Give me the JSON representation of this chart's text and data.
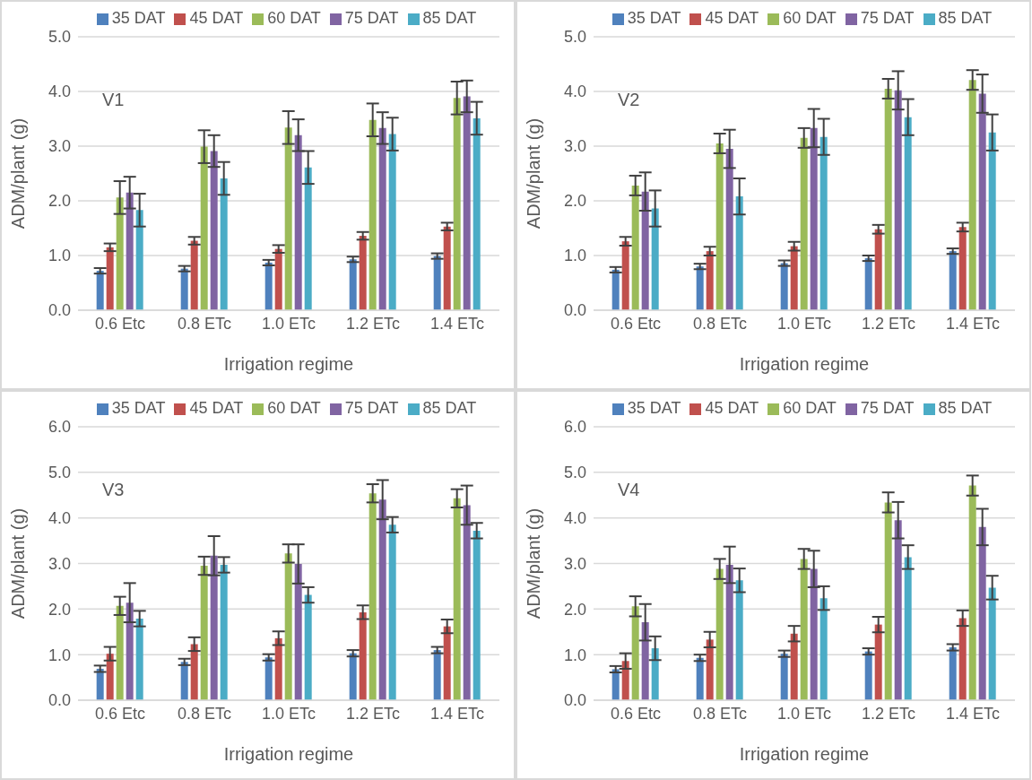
{
  "chart_data": [
    {
      "type": "bar",
      "annotations": [
        "V1"
      ],
      "xlabel": "Irrigation regime",
      "ylabel": "ADM/plant  (g)",
      "categories": [
        "0.6 Etc",
        "0.8 ETc",
        "1.0 ETc",
        "1.2 ETc",
        "1.4 ETc"
      ],
      "ylim": [
        0,
        5
      ],
      "yticks": [
        {
          "value": 0,
          "label": "0.0"
        },
        {
          "value": 1,
          "label": "1.0"
        },
        {
          "value": 2,
          "label": "2.0"
        },
        {
          "value": 3,
          "label": "3.0"
        },
        {
          "value": 4,
          "label": "4.0"
        },
        {
          "value": 5,
          "label": "5.0"
        }
      ],
      "grid": "y",
      "legend": "top",
      "series": [
        {
          "name": "35 DAT",
          "color": "#4f81bd",
          "values": [
            0.72,
            0.76,
            0.87,
            0.93,
            0.99
          ],
          "errors": [
            0.05,
            0.05,
            0.05,
            0.05,
            0.05
          ]
        },
        {
          "name": "45 DAT",
          "color": "#c0504d",
          "values": [
            1.15,
            1.27,
            1.12,
            1.36,
            1.53
          ],
          "errors": [
            0.07,
            0.07,
            0.07,
            0.07,
            0.07
          ]
        },
        {
          "name": "60 DAT",
          "color": "#9bbb59",
          "values": [
            2.06,
            2.99,
            3.34,
            3.48,
            3.88
          ],
          "errors": [
            0.3,
            0.3,
            0.3,
            0.3,
            0.3
          ]
        },
        {
          "name": "75 DAT",
          "color": "#8064a2",
          "values": [
            2.15,
            2.91,
            3.2,
            3.33,
            3.91
          ],
          "errors": [
            0.29,
            0.29,
            0.29,
            0.29,
            0.29
          ]
        },
        {
          "name": "85 DAT",
          "color": "#4bacc6",
          "values": [
            1.83,
            2.41,
            2.61,
            3.22,
            3.51
          ],
          "errors": [
            0.3,
            0.3,
            0.3,
            0.3,
            0.3
          ]
        }
      ]
    },
    {
      "type": "bar",
      "annotations": [
        "V2"
      ],
      "xlabel": "Irrigation regime",
      "ylabel": "ADM/plant  (g)",
      "categories": [
        "0.6 Etc",
        "0.8 ETc",
        "1.0 ETc",
        "1.2 ETc",
        "1.4 ETc"
      ],
      "ylim": [
        0,
        5
      ],
      "yticks": [
        {
          "value": 0,
          "label": "0.0"
        },
        {
          "value": 1,
          "label": "1.0"
        },
        {
          "value": 2,
          "label": "2.0"
        },
        {
          "value": 3,
          "label": "3.0"
        },
        {
          "value": 4,
          "label": "4.0"
        },
        {
          "value": 5,
          "label": "5.0"
        }
      ],
      "grid": "y",
      "legend": "top",
      "series": [
        {
          "name": "35 DAT",
          "color": "#4f81bd",
          "values": [
            0.74,
            0.8,
            0.86,
            0.95,
            1.08
          ],
          "errors": [
            0.05,
            0.05,
            0.05,
            0.05,
            0.05
          ]
        },
        {
          "name": "45 DAT",
          "color": "#c0504d",
          "values": [
            1.26,
            1.08,
            1.17,
            1.48,
            1.52
          ],
          "errors": [
            0.08,
            0.08,
            0.08,
            0.08,
            0.08
          ]
        },
        {
          "name": "60 DAT",
          "color": "#9bbb59",
          "values": [
            2.28,
            3.05,
            3.15,
            4.05,
            4.21
          ],
          "errors": [
            0.18,
            0.18,
            0.18,
            0.18,
            0.18
          ]
        },
        {
          "name": "75 DAT",
          "color": "#8064a2",
          "values": [
            2.17,
            2.95,
            3.33,
            4.02,
            3.96
          ],
          "errors": [
            0.35,
            0.35,
            0.35,
            0.35,
            0.35
          ]
        },
        {
          "name": "85 DAT",
          "color": "#4bacc6",
          "values": [
            1.86,
            2.08,
            3.17,
            3.53,
            3.25
          ],
          "errors": [
            0.33,
            0.33,
            0.33,
            0.33,
            0.33
          ]
        }
      ]
    },
    {
      "type": "bar",
      "annotations": [
        "V3"
      ],
      "xlabel": "Irrigation regime",
      "ylabel": "ADM/plant  (g)",
      "categories": [
        "0.6 Etc",
        "0.8 ETc",
        "1.0 ETc",
        "1.2 ETc",
        "1.4 ETc"
      ],
      "ylim": [
        0,
        6
      ],
      "yticks": [
        {
          "value": 0,
          "label": "0.0"
        },
        {
          "value": 1,
          "label": "1.0"
        },
        {
          "value": 2,
          "label": "2.0"
        },
        {
          "value": 3,
          "label": "3.0"
        },
        {
          "value": 4,
          "label": "4.0"
        },
        {
          "value": 5,
          "label": "5.0"
        },
        {
          "value": 6,
          "label": "6.0"
        }
      ],
      "grid": "y",
      "legend": "top",
      "series": [
        {
          "name": "35 DAT",
          "color": "#4f81bd",
          "values": [
            0.69,
            0.84,
            0.94,
            1.03,
            1.1
          ],
          "errors": [
            0.07,
            0.07,
            0.07,
            0.07,
            0.07
          ]
        },
        {
          "name": "45 DAT",
          "color": "#c0504d",
          "values": [
            1.02,
            1.23,
            1.36,
            1.93,
            1.62
          ],
          "errors": [
            0.15,
            0.15,
            0.15,
            0.15,
            0.15
          ]
        },
        {
          "name": "60 DAT",
          "color": "#9bbb59",
          "values": [
            2.07,
            2.95,
            3.22,
            4.54,
            4.43
          ],
          "errors": [
            0.2,
            0.2,
            0.2,
            0.2,
            0.2
          ]
        },
        {
          "name": "75 DAT",
          "color": "#8064a2",
          "values": [
            2.14,
            3.17,
            2.99,
            4.4,
            4.28
          ],
          "errors": [
            0.43,
            0.43,
            0.43,
            0.43,
            0.43
          ]
        },
        {
          "name": "85 DAT",
          "color": "#4bacc6",
          "values": [
            1.79,
            2.97,
            2.31,
            3.85,
            3.72
          ],
          "errors": [
            0.17,
            0.17,
            0.17,
            0.17,
            0.17
          ]
        }
      ]
    },
    {
      "type": "bar",
      "annotations": [
        "V4"
      ],
      "xlabel": "Irrigation regime",
      "ylabel": "ADM/plant  (g)",
      "categories": [
        "0.6 Etc",
        "0.8 ETc",
        "1.0 ETc",
        "1.2 ETc",
        "1.4 ETc"
      ],
      "ylim": [
        0,
        6
      ],
      "yticks": [
        {
          "value": 0,
          "label": "0.0"
        },
        {
          "value": 1,
          "label": "1.0"
        },
        {
          "value": 2,
          "label": "2.0"
        },
        {
          "value": 3,
          "label": "3.0"
        },
        {
          "value": 4,
          "label": "4.0"
        },
        {
          "value": 5,
          "label": "5.0"
        },
        {
          "value": 6,
          "label": "6.0"
        }
      ],
      "grid": "y",
      "legend": "top",
      "series": [
        {
          "name": "35 DAT",
          "color": "#4f81bd",
          "values": [
            0.68,
            0.93,
            1.02,
            1.07,
            1.16
          ],
          "errors": [
            0.07,
            0.07,
            0.07,
            0.07,
            0.07
          ]
        },
        {
          "name": "45 DAT",
          "color": "#c0504d",
          "values": [
            0.86,
            1.33,
            1.46,
            1.66,
            1.8
          ],
          "errors": [
            0.17,
            0.17,
            0.17,
            0.17,
            0.17
          ]
        },
        {
          "name": "60 DAT",
          "color": "#9bbb59",
          "values": [
            2.06,
            2.88,
            3.1,
            4.34,
            4.71
          ],
          "errors": [
            0.22,
            0.22,
            0.22,
            0.22,
            0.22
          ]
        },
        {
          "name": "75 DAT",
          "color": "#8064a2",
          "values": [
            1.71,
            2.97,
            2.88,
            3.95,
            3.8
          ],
          "errors": [
            0.4,
            0.4,
            0.4,
            0.4,
            0.4
          ]
        },
        {
          "name": "85 DAT",
          "color": "#4bacc6",
          "values": [
            1.14,
            2.63,
            2.24,
            3.14,
            2.47
          ],
          "errors": [
            0.26,
            0.26,
            0.26,
            0.26,
            0.26
          ]
        }
      ]
    }
  ]
}
